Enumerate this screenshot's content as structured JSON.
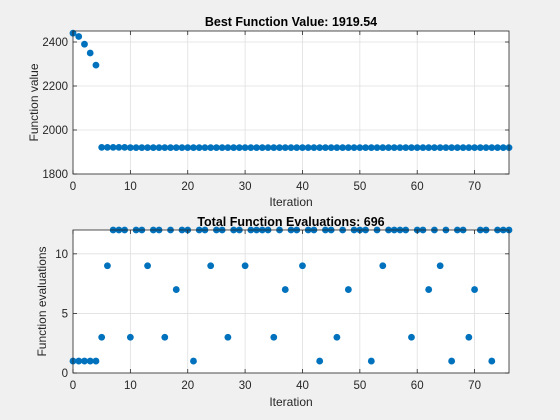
{
  "chart_data": [
    {
      "type": "scatter",
      "title": "Best Function Value: 1919.54",
      "xlabel": "Iteration",
      "ylabel": "Function value",
      "xlim": [
        0,
        76
      ],
      "ylim": [
        1800,
        2450
      ],
      "xticks": [
        "0",
        "10",
        "20",
        "30",
        "40",
        "50",
        "60",
        "70"
      ],
      "yticks": [
        "1800",
        "2000",
        "2200",
        "2400"
      ],
      "grid": true,
      "marker_color": "#0072bd",
      "series": [
        {
          "x": [
            0,
            1,
            2,
            3,
            4,
            5,
            6,
            7,
            8,
            9,
            10,
            11,
            12,
            13,
            14,
            15,
            16,
            17,
            18,
            19,
            20,
            21,
            22,
            23,
            24,
            25,
            26,
            27,
            28,
            29,
            30,
            31,
            32,
            33,
            34,
            35,
            36,
            37,
            38,
            39,
            40,
            41,
            42,
            43,
            44,
            45,
            46,
            47,
            48,
            49,
            50,
            51,
            52,
            53,
            54,
            55,
            56,
            57,
            58,
            59,
            60,
            61,
            62,
            63,
            64,
            65,
            66,
            67,
            68,
            69,
            70,
            71,
            72,
            73,
            74,
            75,
            76
          ],
          "values": [
            2440,
            2425,
            2390,
            2350,
            2295,
            1921,
            1921,
            1921,
            1921,
            1921,
            1920,
            1920,
            1920,
            1920,
            1920,
            1920,
            1920,
            1920,
            1920,
            1920,
            1920,
            1920,
            1920,
            1920,
            1920,
            1920,
            1920,
            1920,
            1920,
            1920,
            1920,
            1920,
            1920,
            1920,
            1920,
            1920,
            1920,
            1920,
            1920,
            1920,
            1920,
            1920,
            1920,
            1920,
            1920,
            1920,
            1920,
            1920,
            1920,
            1920,
            1920,
            1920,
            1920,
            1920,
            1920,
            1920,
            1920,
            1920,
            1920,
            1920,
            1920,
            1920,
            1920,
            1920,
            1920,
            1920,
            1920,
            1920,
            1920,
            1920,
            1920,
            1920,
            1920,
            1920,
            1920,
            1920,
            1920
          ]
        }
      ]
    },
    {
      "type": "scatter",
      "title": "Total Function Evaluations: 696",
      "xlabel": "Iteration",
      "ylabel": "Function evaluations",
      "xlim": [
        0,
        76
      ],
      "ylim": [
        0,
        12
      ],
      "xticks": [
        "0",
        "10",
        "20",
        "30",
        "40",
        "50",
        "60",
        "70"
      ],
      "yticks": [
        "0",
        "5",
        "10"
      ],
      "grid": true,
      "marker_color": "#0072bd",
      "series": [
        {
          "x": [
            0,
            1,
            2,
            3,
            4,
            5,
            6,
            7,
            8,
            9,
            10,
            11,
            12,
            13,
            14,
            15,
            16,
            17,
            18,
            19,
            20,
            21,
            22,
            23,
            24,
            25,
            26,
            27,
            28,
            29,
            30,
            31,
            32,
            33,
            34,
            35,
            36,
            37,
            38,
            39,
            40,
            41,
            42,
            43,
            44,
            45,
            46,
            47,
            48,
            49,
            50,
            51,
            52,
            53,
            54,
            55,
            56,
            57,
            58,
            59,
            60,
            61,
            62,
            63,
            64,
            65,
            66,
            67,
            68,
            69,
            70,
            71,
            72,
            73,
            74,
            75,
            76
          ],
          "values": [
            1,
            1,
            1,
            1,
            1,
            3,
            9,
            12,
            12,
            12,
            3,
            12,
            12,
            9,
            12,
            12,
            3,
            12,
            7,
            12,
            12,
            1,
            12,
            12,
            9,
            12,
            12,
            3,
            12,
            12,
            9,
            12,
            12,
            12,
            12,
            3,
            12,
            7,
            12,
            12,
            9,
            12,
            12,
            1,
            12,
            12,
            3,
            12,
            7,
            12,
            12,
            12,
            1,
            12,
            9,
            12,
            12,
            12,
            12,
            3,
            12,
            12,
            7,
            12,
            9,
            12,
            1,
            12,
            12,
            3,
            7,
            12,
            12,
            1,
            12,
            12,
            12
          ]
        }
      ]
    }
  ]
}
